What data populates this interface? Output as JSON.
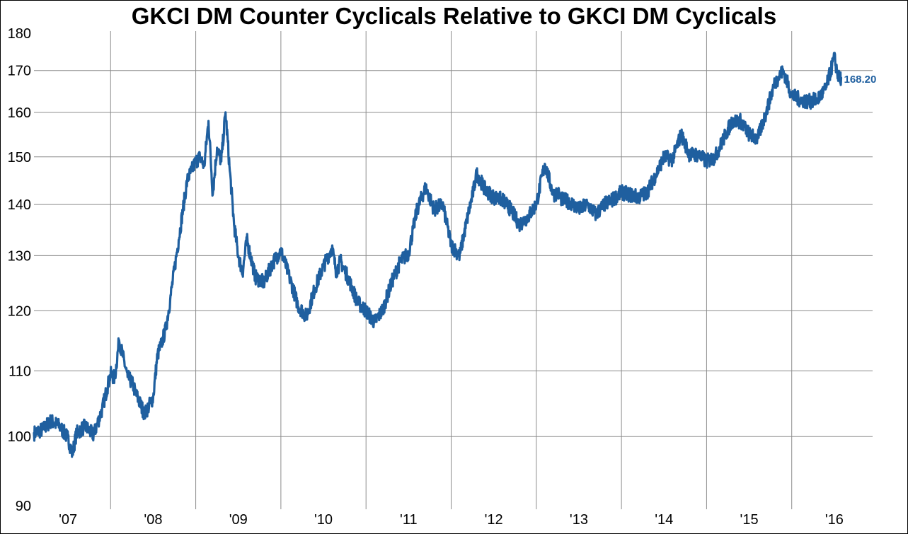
{
  "chart_data": {
    "type": "line",
    "title": "GKCI DM Counter Cyclicals Relative to GKCI DM Cyclicals",
    "xlabel": "",
    "ylabel": "",
    "yscale": "log",
    "ylim": [
      90,
      180
    ],
    "yticks": [
      90,
      100,
      110,
      120,
      130,
      140,
      150,
      160,
      170,
      180
    ],
    "xlim": [
      2006.6,
      2016.45
    ],
    "xtick_labels": [
      "'07",
      "'08",
      "'09",
      "'10",
      "'11",
      "'12",
      "'13",
      "'14",
      "'15",
      "'16"
    ],
    "xtick_positions": [
      2007.0,
      2008.0,
      2009.0,
      2010.0,
      2011.0,
      2012.0,
      2013.0,
      2014.0,
      2015.0,
      2016.0
    ],
    "grid": true,
    "legend": "none",
    "line_color": "#1f5f9f",
    "end_value_label": "168.20",
    "series": [
      {
        "x": [
          2006.6,
          2006.7,
          2006.8,
          2006.9,
          2007.0,
          2007.05,
          2007.1,
          2007.2,
          2007.3,
          2007.4,
          2007.5,
          2007.55,
          2007.6,
          2007.7,
          2007.75,
          2007.8,
          2007.9,
          2008.0,
          2008.05,
          2008.1,
          2008.15,
          2008.2,
          2008.3,
          2008.4,
          2008.5,
          2008.55,
          2008.6,
          2008.65,
          2008.7,
          2008.75,
          2008.8,
          2008.85,
          2008.9,
          2008.95,
          2009.0,
          2009.05,
          2009.1,
          2009.2,
          2009.3,
          2009.4,
          2009.5,
          2009.6,
          2009.7,
          2009.8,
          2009.9,
          2010.0,
          2010.1,
          2010.15,
          2010.2,
          2010.3,
          2010.4,
          2010.5,
          2010.6,
          2010.7,
          2010.8,
          2010.9,
          2011.0,
          2011.1,
          2011.2,
          2011.3,
          2011.4,
          2011.5,
          2011.6,
          2011.7,
          2011.75,
          2011.8,
          2011.9,
          2012.0,
          2012.1,
          2012.2,
          2012.3,
          2012.4,
          2012.5,
          2012.6,
          2012.7,
          2012.75,
          2012.8,
          2012.9,
          2013.0,
          2013.1,
          2013.2,
          2013.3,
          2013.4,
          2013.5,
          2013.6,
          2013.7,
          2013.8,
          2013.9,
          2014.0,
          2014.1,
          2014.2,
          2014.3,
          2014.4,
          2014.5,
          2014.6,
          2014.7,
          2014.8,
          2014.9,
          2015.0,
          2015.1,
          2015.2,
          2015.3,
          2015.4,
          2015.5,
          2015.6,
          2015.7,
          2015.8,
          2015.9,
          2016.0,
          2016.05,
          2016.08
        ],
        "y": [
          100.5,
          101,
          102.3,
          101.5,
          99.8,
          97.5,
          100.5,
          101.5,
          100.2,
          104,
          109.5,
          108.8,
          115,
          109,
          108.2,
          106.3,
          103.3,
          105.8,
          112.5,
          114.5,
          117,
          122,
          133,
          145,
          149,
          150,
          148,
          158,
          142,
          152,
          149,
          160,
          147,
          136,
          130,
          126.8,
          133,
          126,
          125,
          128.5,
          131,
          126,
          121,
          119,
          124,
          128,
          131.5,
          127,
          129,
          125.5,
          121.5,
          120,
          118,
          120.3,
          125,
          128.8,
          130.5,
          139,
          143.5,
          139,
          140,
          132,
          130,
          138,
          141.8,
          146.5,
          143,
          141.5,
          141,
          139,
          136,
          137.5,
          140,
          148.5,
          142,
          142.5,
          141,
          140.5,
          139,
          140,
          138,
          140,
          141,
          142.5,
          142,
          141.5,
          142.5,
          146,
          150,
          149.5,
          155,
          150.5,
          150.5,
          149,
          150,
          154,
          158,
          158,
          155,
          154,
          160,
          167,
          170,
          164,
          163,
          162.5,
          163,
          165.5,
          173.2,
          168.2,
          168.2
        ]
      }
    ]
  }
}
